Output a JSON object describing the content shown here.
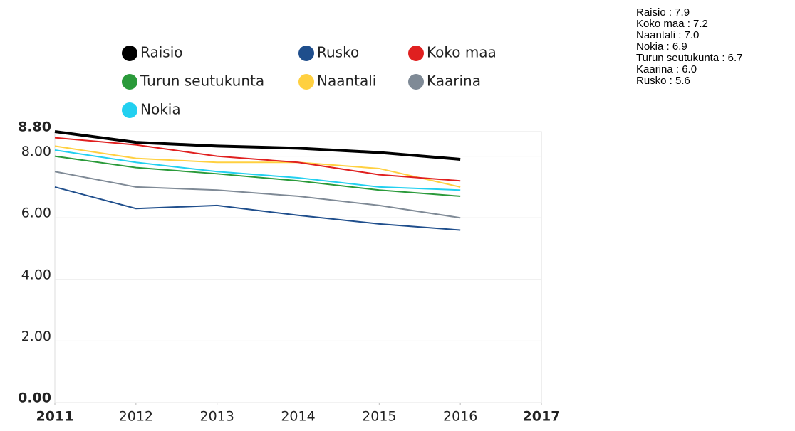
{
  "chart_data": {
    "type": "line",
    "x": [
      2011,
      2012,
      2013,
      2014,
      2015,
      2016
    ],
    "series": [
      {
        "name": "Raisio",
        "color": "#000000",
        "values": [
          8.8,
          8.45,
          8.33,
          8.26,
          8.12,
          7.9
        ]
      },
      {
        "name": "Rusko",
        "color": "#1f4e8c",
        "values": [
          7.0,
          6.3,
          6.4,
          6.08,
          5.8,
          5.6
        ]
      },
      {
        "name": "Koko maa",
        "color": "#e02020",
        "values": [
          8.6,
          8.37,
          8.0,
          7.8,
          7.4,
          7.2
        ]
      },
      {
        "name": "Turun seutukunta",
        "color": "#2a9a3a",
        "values": [
          8.0,
          7.63,
          7.43,
          7.2,
          6.9,
          6.7
        ]
      },
      {
        "name": "Naantali",
        "color": "#ffd040",
        "values": [
          8.33,
          7.93,
          7.8,
          7.8,
          7.6,
          7.0
        ]
      },
      {
        "name": "Kaarina",
        "color": "#7f8a96",
        "values": [
          7.5,
          7.0,
          6.9,
          6.7,
          6.4,
          6.0
        ]
      },
      {
        "name": "Nokia",
        "color": "#22d0f0",
        "values": [
          8.2,
          7.8,
          7.5,
          7.3,
          7.0,
          6.9
        ]
      }
    ],
    "xlim": [
      2011,
      2017
    ],
    "xticks": [
      2011,
      2012,
      2013,
      2014,
      2015,
      2016,
      2017
    ],
    "ylim": [
      0,
      8.8
    ],
    "yticks": [
      {
        "value": 0,
        "label": "0.00"
      },
      {
        "value": 2,
        "label": "2.00"
      },
      {
        "value": 4,
        "label": "4.00"
      },
      {
        "value": 6,
        "label": "6.00"
      },
      {
        "value": 8,
        "label": "8.00"
      },
      {
        "value": 8.8,
        "label": "8.80"
      }
    ],
    "grid": true,
    "summary": [
      "Raisio : 7.9",
      "Koko maa : 7.2",
      "Naantali : 7.0",
      "Nokia : 6.9",
      "Turun seutukunta : 6.7",
      "Kaarina : 6.0",
      "Rusko : 5.6"
    ]
  }
}
